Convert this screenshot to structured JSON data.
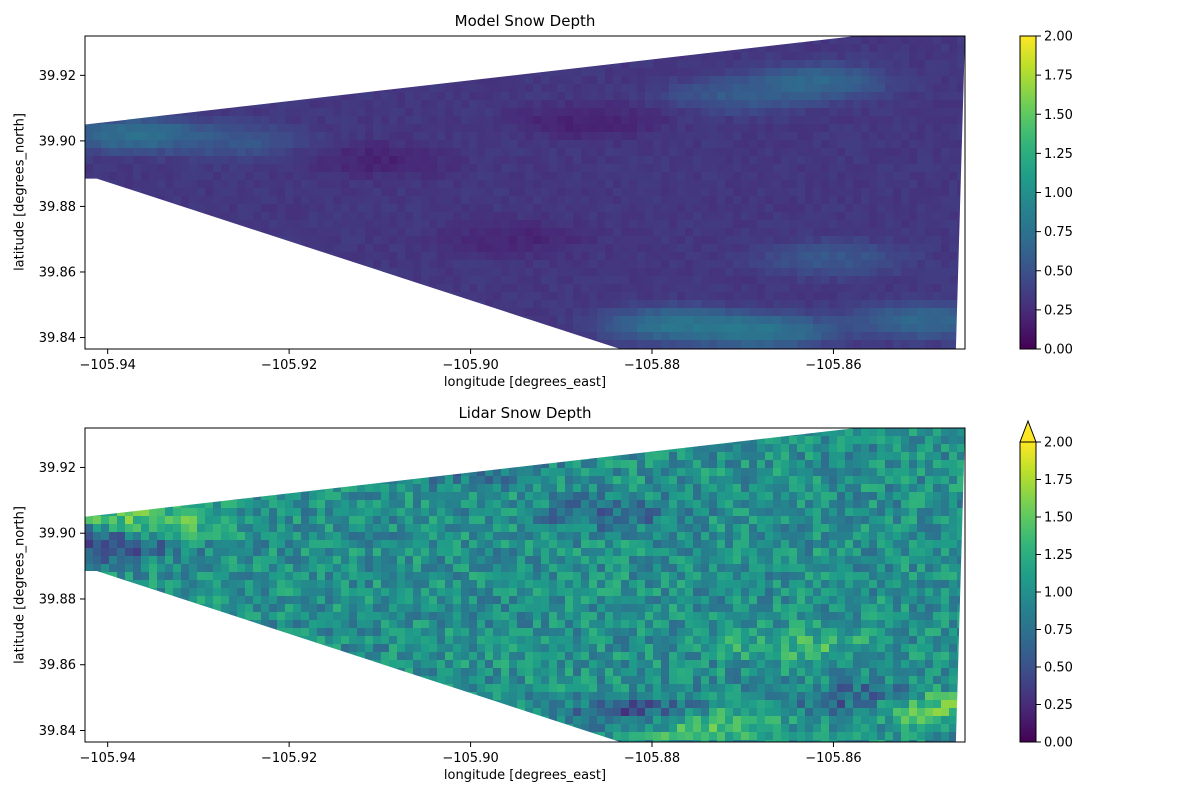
{
  "chart_data": [
    {
      "type": "heatmap",
      "title": "Model Snow Depth",
      "xlabel": "longitude [degrees_east]",
      "ylabel": "latitude [degrees_north]",
      "xlim": [
        -105.9425,
        -105.8455
      ],
      "ylim": [
        39.8365,
        39.932
      ],
      "x_ticks": [
        -105.94,
        -105.92,
        -105.9,
        -105.88,
        -105.86
      ],
      "x_tick_labels": [
        "−105.94",
        "−105.92",
        "−105.90",
        "−105.88",
        "−105.86"
      ],
      "y_ticks": [
        39.84,
        39.86,
        39.88,
        39.9,
        39.92
      ],
      "y_tick_labels": [
        "39.84",
        "39.86",
        "39.88",
        "39.90",
        "39.92"
      ],
      "colormap": "viridis",
      "colorbar": {
        "min": 0.0,
        "max": 2.0,
        "extend": "neither",
        "ticks": [
          0.0,
          0.25,
          0.5,
          0.75,
          1.0,
          1.25,
          1.5,
          1.75,
          2.0
        ],
        "tick_labels": [
          "0.00",
          "0.25",
          "0.50",
          "0.75",
          "1.00",
          "1.25",
          "1.50",
          "1.75",
          "2.00"
        ]
      },
      "domain_lonlat": [
        [
          -105.9425,
          39.905
        ],
        [
          -105.8575,
          39.932
        ],
        [
          -105.8455,
          39.932
        ],
        [
          -105.8465,
          39.8365
        ],
        [
          -105.8835,
          39.8365
        ],
        [
          -105.9412,
          39.8885
        ],
        [
          -105.9425,
          39.8885
        ]
      ],
      "field": {
        "base": 0.32,
        "features": [
          {
            "lon": -105.862,
            "lat": 39.918,
            "value": 0.85
          },
          {
            "lon": -105.87,
            "lat": 39.914,
            "value": 0.7
          },
          {
            "lon": -105.877,
            "lat": 39.844,
            "value": 1.0
          },
          {
            "lon": -105.868,
            "lat": 39.842,
            "value": 1.0
          },
          {
            "lon": -105.85,
            "lat": 39.845,
            "value": 0.85
          },
          {
            "lon": -105.937,
            "lat": 39.902,
            "value": 0.95
          },
          {
            "lon": -105.926,
            "lat": 39.9,
            "value": 0.65
          },
          {
            "lon": -105.86,
            "lat": 39.864,
            "value": 0.65
          },
          {
            "lon": -105.887,
            "lat": 39.906,
            "value": 0.12
          },
          {
            "lon": -105.91,
            "lat": 39.894,
            "value": 0.14
          },
          {
            "lon": -105.895,
            "lat": 39.87,
            "value": 0.15
          }
        ]
      }
    },
    {
      "type": "heatmap",
      "title": "Lidar Snow Depth",
      "xlabel": "longitude [degrees_east]",
      "ylabel": "latitude [degrees_north]",
      "xlim": [
        -105.9425,
        -105.8455
      ],
      "ylim": [
        39.8365,
        39.932
      ],
      "x_ticks": [
        -105.94,
        -105.92,
        -105.9,
        -105.88,
        -105.86
      ],
      "x_tick_labels": [
        "−105.94",
        "−105.92",
        "−105.90",
        "−105.88",
        "−105.86"
      ],
      "y_ticks": [
        39.84,
        39.86,
        39.88,
        39.9,
        39.92
      ],
      "y_tick_labels": [
        "39.84",
        "39.86",
        "39.88",
        "39.90",
        "39.92"
      ],
      "colormap": "viridis",
      "colorbar": {
        "min": 0.0,
        "max": 2.0,
        "extend": "max",
        "ticks": [
          0.0,
          0.25,
          0.5,
          0.75,
          1.0,
          1.25,
          1.5,
          1.75,
          2.0
        ],
        "tick_labels": [
          "0.00",
          "0.25",
          "0.50",
          "0.75",
          "1.00",
          "1.25",
          "1.50",
          "1.75",
          "2.00"
        ]
      },
      "domain_lonlat": [
        [
          -105.9425,
          39.905
        ],
        [
          -105.8575,
          39.932
        ],
        [
          -105.8455,
          39.932
        ],
        [
          -105.8465,
          39.8365
        ],
        [
          -105.8835,
          39.8365
        ],
        [
          -105.9412,
          39.8885
        ],
        [
          -105.9425,
          39.8885
        ]
      ],
      "field": {
        "base": 1.0,
        "features": [
          {
            "lon": -105.875,
            "lat": 39.842,
            "value": 1.75
          },
          {
            "lon": -105.85,
            "lat": 39.847,
            "value": 1.75
          },
          {
            "lon": -105.864,
            "lat": 39.866,
            "value": 1.45
          },
          {
            "lon": -105.935,
            "lat": 39.903,
            "value": 1.8
          },
          {
            "lon": -105.881,
            "lat": 39.845,
            "value": 0.15
          },
          {
            "lon": -105.857,
            "lat": 39.849,
            "value": 0.35
          },
          {
            "lon": -105.94,
            "lat": 39.897,
            "value": 0.1
          },
          {
            "lon": -105.885,
            "lat": 39.906,
            "value": 0.55
          },
          {
            "lon": -105.9,
            "lat": 39.92,
            "value": 0.6
          }
        ]
      }
    }
  ]
}
